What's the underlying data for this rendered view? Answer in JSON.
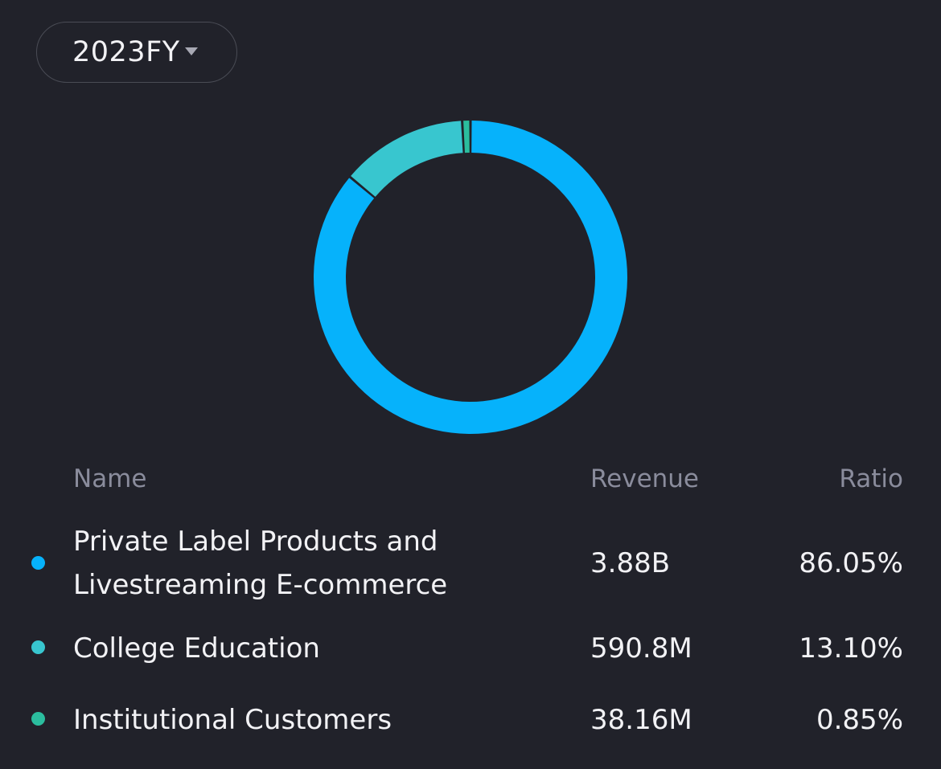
{
  "period_selector": {
    "label": "2023FY",
    "icon": "caret-down-icon"
  },
  "table": {
    "headers": {
      "name": "Name",
      "revenue": "Revenue",
      "ratio": "Ratio"
    },
    "rows": [
      {
        "name": "Private Label Products and Livestreaming E-commerce",
        "revenue": "3.88B",
        "ratio": "86.05%",
        "color": "#06b2fb"
      },
      {
        "name": "College Education",
        "revenue": "590.8M",
        "ratio": "13.10%",
        "color": "#38c6cf"
      },
      {
        "name": "Institutional Customers",
        "revenue": "38.16M",
        "ratio": "0.85%",
        "color": "#2bbd9e"
      }
    ]
  },
  "chart_data": {
    "type": "pie",
    "style": "donut",
    "categories": [
      "Private Label Products and Livestreaming E-commerce",
      "College Education",
      "Institutional Customers"
    ],
    "values": [
      86.05,
      13.1,
      0.85
    ],
    "colors": [
      "#06b2fb",
      "#38c6cf",
      "#2bbd9e"
    ],
    "title": "",
    "legend": "table below chart"
  }
}
